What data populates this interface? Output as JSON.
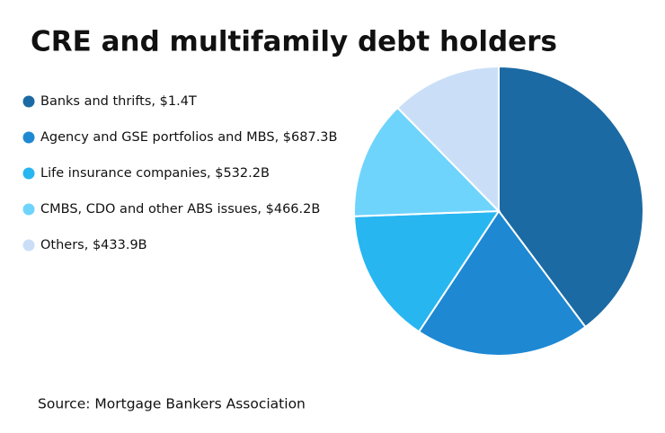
{
  "chart_data": {
    "type": "pie",
    "title": "CRE and multifamily debt holders",
    "categories": [
      "Banks and thrifts, $1.4T",
      "Agency and GSE portfolios and MBS, $687.3B",
      "Life insurance companies, $532.2B",
      "CMBS, CDO and other ABS issues, $466.2B",
      "Others, $433.9B"
    ],
    "values": [
      1400,
      687.3,
      532.2,
      466.2,
      433.9
    ],
    "colors": [
      "#1b6aa3",
      "#1e88d3",
      "#27b6f0",
      "#6fd4fc",
      "#cadff7"
    ],
    "source": "Source: Mortgage Bankers Association"
  }
}
